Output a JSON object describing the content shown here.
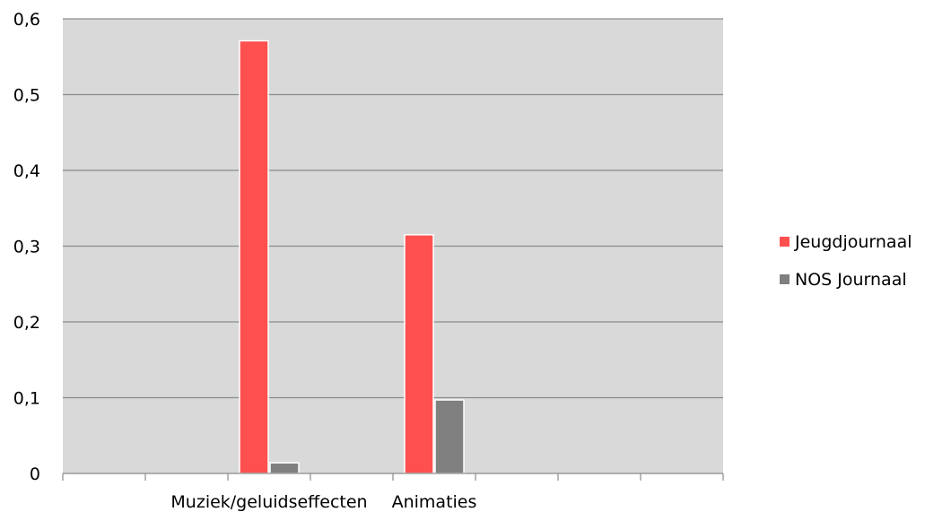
{
  "chart_data": {
    "type": "bar",
    "categories": [
      "",
      "",
      "Muziek/geluidseffecten",
      "",
      "Animaties",
      "",
      "",
      ""
    ],
    "series": [
      {
        "name": "Jeugdjournaal",
        "color": "#ff5050",
        "values": [
          null,
          null,
          0.571,
          null,
          0.315,
          null,
          null,
          null
        ]
      },
      {
        "name": "NOS Journaal",
        "color": "#808080",
        "values": [
          null,
          null,
          0.014,
          null,
          0.097,
          null,
          null,
          null
        ]
      }
    ],
    "y_ticks": [
      "0",
      "0,1",
      "0,2",
      "0,3",
      "0,4",
      "0,5",
      "0,6"
    ],
    "ylim": [
      0,
      0.6
    ],
    "grid": true,
    "plot_background": "#d9d9d9",
    "legend_position": "right"
  }
}
